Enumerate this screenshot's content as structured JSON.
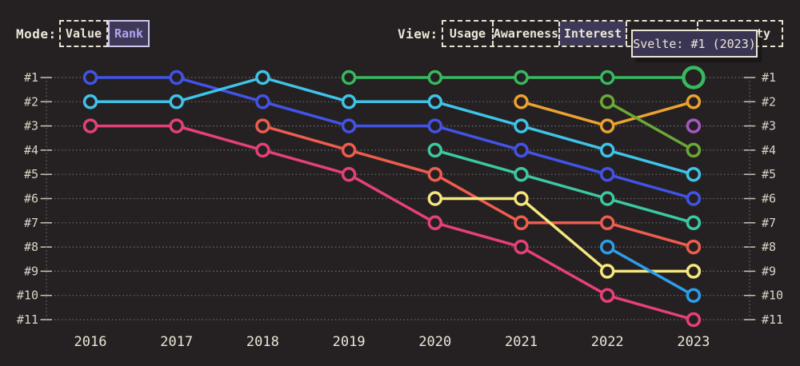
{
  "theme": {
    "bg": "#252122",
    "text": "#ece6d9",
    "text_dim": "#d9d3c6",
    "grid": "#6e696b",
    "tick": "#c9c3b7",
    "border": "#e8e2d4",
    "selected_bg": "#3e3957",
    "selected_text": "#b5a3f2",
    "selected_border": "#cfc6ee",
    "tooltip_bg": "#3a3553",
    "tooltip_border": "#ebe5d7"
  },
  "controls": {
    "mode": {
      "label": "Mode:",
      "options": [
        {
          "label": "Value",
          "selected": false
        },
        {
          "label": "Rank",
          "selected": true
        }
      ]
    },
    "view": {
      "label": "View:",
      "options": [
        {
          "label": "Usage",
          "selected": false
        },
        {
          "label": "Awareness",
          "selected": false
        },
        {
          "label": "Interest",
          "selected": true
        },
        {
          "label": "",
          "selected": false,
          "occluded_by_tooltip": true
        },
        {
          "label": "ty",
          "selected": false,
          "occluded_by_tooltip": true
        }
      ]
    }
  },
  "tooltip": {
    "text": "Svelte: #1 (2023)"
  },
  "chart_data": {
    "type": "line",
    "variant": "bump-rank",
    "title": "",
    "xlabel": "",
    "ylabel": "",
    "x_labels": [
      "2016",
      "2017",
      "2018",
      "2019",
      "2020",
      "2021",
      "2022",
      "2023"
    ],
    "rank_labels": [
      "#1",
      "#2",
      "#3",
      "#4",
      "#5",
      "#6",
      "#7",
      "#8",
      "#9",
      "#10",
      "#11"
    ],
    "ylim": [
      1,
      11
    ],
    "grid": "dotted-horizontal",
    "legend": "none",
    "series": [
      {
        "id": "royal-blue",
        "color": "#4253e6",
        "ranks": [
          1,
          1,
          2,
          3,
          3,
          4,
          5,
          6
        ]
      },
      {
        "id": "cyan",
        "color": "#3fc3e8",
        "ranks": [
          2,
          2,
          1,
          2,
          2,
          3,
          4,
          5
        ]
      },
      {
        "id": "pink",
        "color": "#e6407a",
        "ranks": [
          3,
          3,
          4,
          5,
          7,
          8,
          10,
          11
        ]
      },
      {
        "id": "salmon",
        "color": "#ee5d4f",
        "ranks": [
          null,
          null,
          3,
          4,
          5,
          7,
          7,
          8
        ]
      },
      {
        "id": "svelte",
        "color": "#38b960",
        "ranks": [
          null,
          null,
          null,
          1,
          1,
          1,
          1,
          1
        ]
      },
      {
        "id": "teal",
        "color": "#3bc9a1",
        "ranks": [
          null,
          null,
          null,
          null,
          4,
          5,
          6,
          7
        ]
      },
      {
        "id": "yellow",
        "color": "#f4e77d",
        "ranks": [
          null,
          null,
          null,
          null,
          6,
          6,
          9,
          9
        ]
      },
      {
        "id": "orange",
        "color": "#eca22f",
        "ranks": [
          null,
          null,
          null,
          null,
          null,
          2,
          3,
          2
        ]
      },
      {
        "id": "olive-green",
        "color": "#6ba835",
        "ranks": [
          null,
          null,
          null,
          null,
          null,
          null,
          2,
          4
        ]
      },
      {
        "id": "sky-blue",
        "color": "#2d9de9",
        "ranks": [
          null,
          null,
          null,
          null,
          null,
          null,
          8,
          10
        ]
      },
      {
        "id": "purple",
        "color": "#a459c4",
        "ranks": [
          null,
          null,
          null,
          null,
          null,
          null,
          null,
          3
        ]
      }
    ],
    "highlight": {
      "series": "svelte",
      "x": "2023",
      "rank": 1
    }
  }
}
